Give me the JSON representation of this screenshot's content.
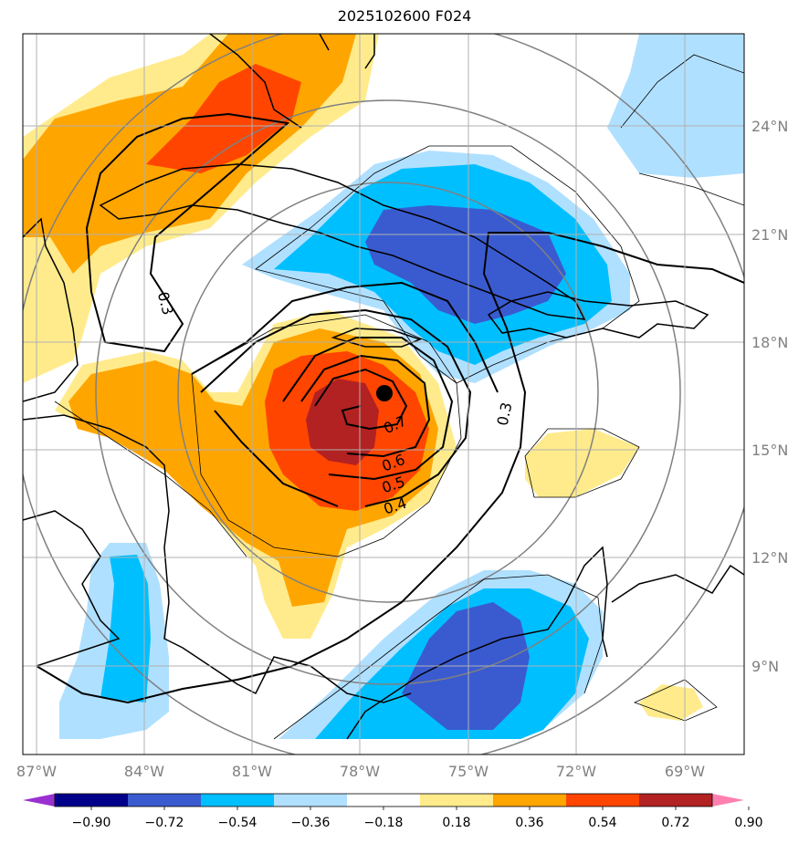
{
  "title": "2025102600 F024",
  "colors": {
    "background": "#ffffff",
    "grid": "#b0b0b0",
    "ring": "#808080",
    "land": "#000000",
    "contour": "#000000",
    "storm_center": "#000000"
  },
  "x_ticks": [
    "87°W",
    "84°W",
    "81°W",
    "78°W",
    "75°W",
    "72°W",
    "69°W"
  ],
  "y_ticks": [
    "24°N",
    "21°N",
    "18°N",
    "15°N",
    "12°N",
    "9°N"
  ],
  "contour_labels": [
    "0.3",
    "0.3",
    "0.7",
    "0.6",
    "0.5",
    "0.4"
  ],
  "colorbar": {
    "bins": [
      "#9a30d0",
      "#00008b",
      "#3a5bd0",
      "#00bfff",
      "#b0e0ff",
      "#ffffff",
      "#ffeb8c",
      "#ffa500",
      "#ff4500",
      "#b22222",
      "#ff80b0"
    ],
    "labels": [
      "−0.90",
      "−0.72",
      "−0.54",
      "−0.36",
      "−0.18",
      "0.18",
      "0.36",
      "0.54",
      "0.72",
      "0.90"
    ]
  },
  "chart_data": {
    "type": "heatmap",
    "title": "2025102600 F024",
    "lon_range": [
      -87.3,
      -67.9
    ],
    "lat_range": [
      7.9,
      26.5
    ],
    "storm_center": {
      "lon": -77.3,
      "lat": 16.5
    },
    "contour_levels": [
      0.3,
      0.4,
      0.5,
      0.6,
      0.7
    ],
    "shading_levels": [
      -0.9,
      -0.72,
      -0.54,
      -0.36,
      -0.18,
      0.18,
      0.36,
      0.54,
      0.72,
      0.9
    ]
  }
}
